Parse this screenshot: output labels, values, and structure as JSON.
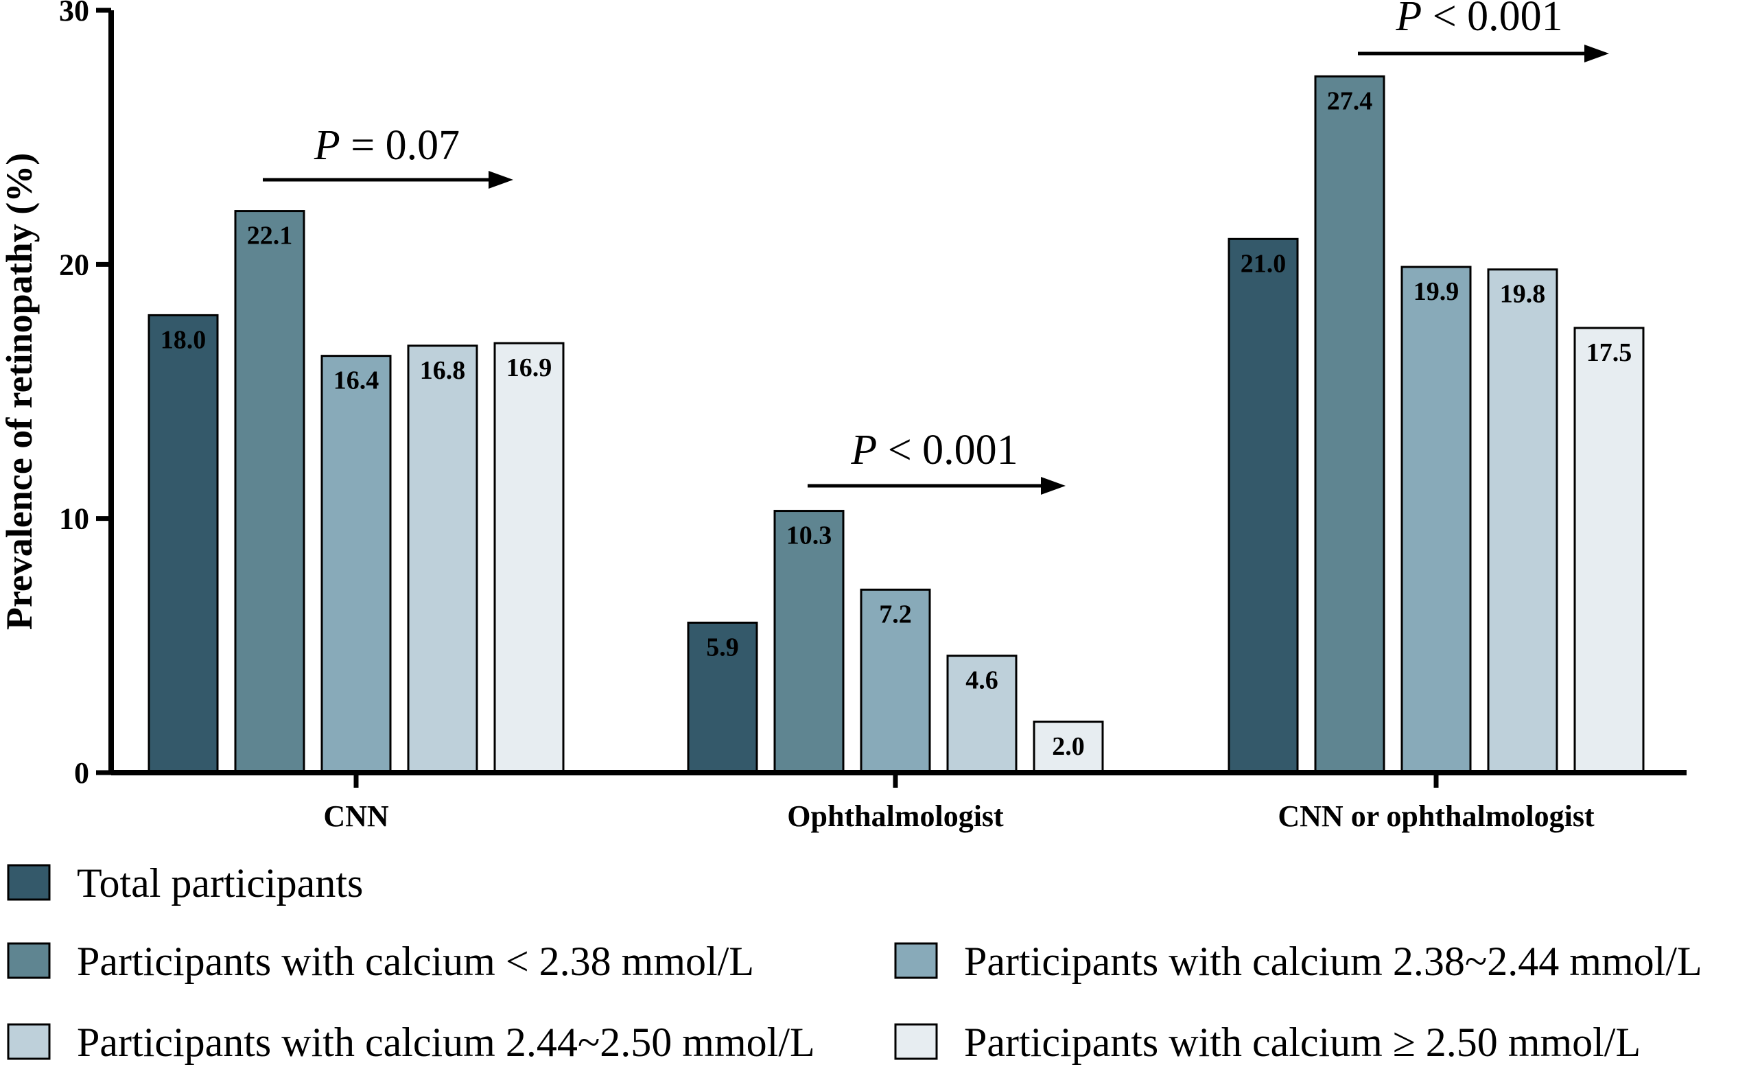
{
  "chart_data": {
    "type": "bar",
    "title": "",
    "xlabel": "",
    "ylabel": "Prevalence of retinopathy (%)",
    "ylim": [
      0,
      30
    ],
    "yticks": [
      "0",
      "10",
      "20",
      "30"
    ],
    "categories": [
      "CNN",
      "Ophthalmologist",
      "CNN or ophthalmologist"
    ],
    "series": [
      {
        "name": "Total participants",
        "color": "#34596a",
        "values": [
          18.0,
          5.9,
          21.0
        ],
        "labels": [
          "18.0",
          "5.9",
          "21.0"
        ]
      },
      {
        "name": "Participants with calcium < 2.38 mmol/L",
        "color": "#5f8591",
        "values": [
          22.1,
          10.3,
          27.4
        ],
        "labels": [
          "22.1",
          "10.3",
          "27.4"
        ]
      },
      {
        "name": "Participants with calcium 2.38~2.44 mmol/L",
        "color": "#88aab9",
        "values": [
          16.4,
          7.2,
          19.9
        ],
        "labels": [
          "16.4",
          "7.2",
          "19.9"
        ]
      },
      {
        "name": "Participants with calcium 2.44~2.50 mmol/L",
        "color": "#bed0da",
        "values": [
          16.8,
          4.6,
          19.8
        ],
        "labels": [
          "16.8",
          "4.6",
          "19.8"
        ]
      },
      {
        "name": "Participants with calcium ≥ 2.50 mmol/L",
        "color": "#e7edf1",
        "values": [
          16.9,
          2.0,
          17.5
        ],
        "labels": [
          "16.9",
          "2.0",
          "17.5"
        ]
      }
    ],
    "annotations": [
      {
        "category": "CNN",
        "p_symbol": "P",
        "text": " = 0.07"
      },
      {
        "category": "Ophthalmologist",
        "p_symbol": "P",
        "text": " < 0.001"
      },
      {
        "category": "CNN or ophthalmologist",
        "p_symbol": "P",
        "text": " < 0.001"
      }
    ],
    "legend_position": "bottom",
    "grid": false
  }
}
